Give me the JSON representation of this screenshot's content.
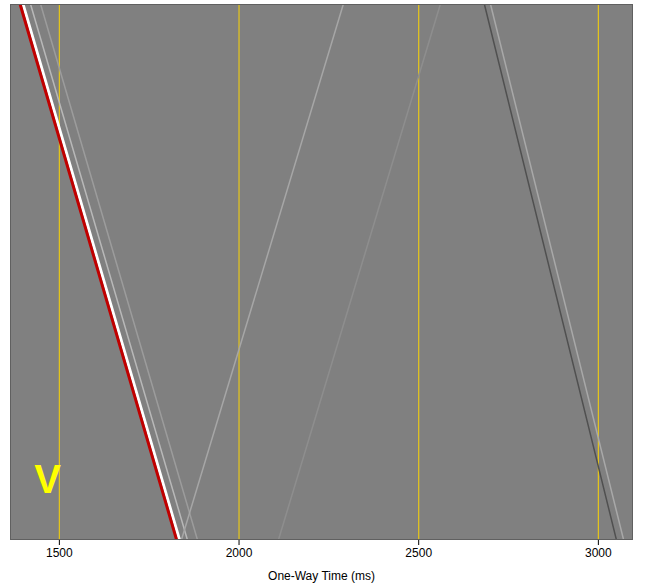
{
  "chart_data": {
    "type": "line",
    "x_label": "One-Way Time (ms)",
    "xlim": [
      1364,
      3095
    ],
    "xticks": [
      1500,
      2000,
      2500,
      3000
    ],
    "ylim": [
      0,
      100
    ],
    "grid": true,
    "tick_labels": "x",
    "series": [
      {
        "color": "#b8b8b8",
        "x": [
          1420,
          1856
        ],
        "y": [
          0,
          100
        ]
      },
      {
        "color": "#9c9c9c",
        "x": [
          1448,
          1884
        ],
        "y": [
          0,
          100
        ]
      },
      {
        "color": "#a6a6a6",
        "x": [
          1840,
          2290
        ],
        "y": [
          100,
          0
        ]
      },
      {
        "color": "#8e8e8e",
        "x": [
          2110,
          2560
        ],
        "y": [
          100,
          0
        ]
      },
      {
        "color": "#a8a8a8",
        "x": [
          2700,
          3070
        ],
        "y": [
          0,
          100
        ]
      },
      {
        "color": "#505050",
        "x": [
          2683,
          3050
        ],
        "y": [
          0,
          100
        ]
      },
      {
        "color": "#ffffff",
        "x": [
          1399,
          1834
        ],
        "y": [
          0,
          100
        ]
      },
      {
        "color": "#c00000",
        "x": [
          1391,
          1826
        ],
        "y": [
          0,
          100
        ]
      }
    ],
    "annotations": [
      {
        "text": "V",
        "x": 1467,
        "y": 89,
        "color": "#ffff00"
      }
    ]
  }
}
